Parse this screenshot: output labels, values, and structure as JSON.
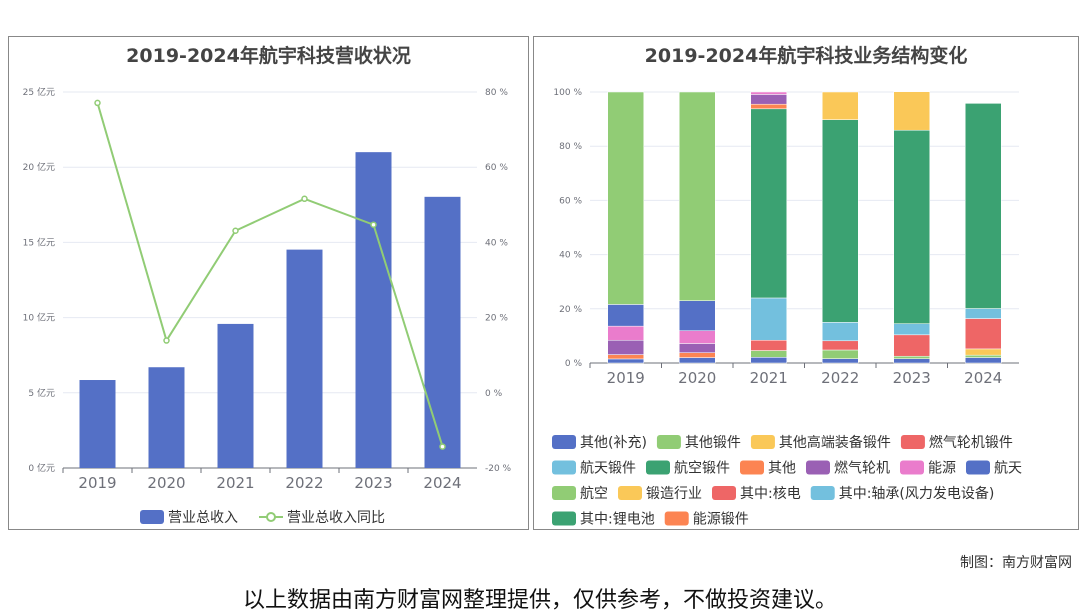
{
  "chart_data": [
    {
      "type": "bar+line",
      "title": "2019-2024年航宇科技营收状况",
      "categories": [
        "2019",
        "2020",
        "2021",
        "2022",
        "2023",
        "2024"
      ],
      "series": [
        {
          "name": "营业总收入",
          "type": "bar",
          "unit": "亿元",
          "color": "#5470c6",
          "values": [
            5.85,
            6.7,
            9.58,
            14.52,
            21.0,
            18.03
          ]
        },
        {
          "name": "营业总收入同比",
          "type": "line",
          "unit": "%",
          "color": "#91cc75",
          "values": [
            77.1,
            13.9,
            43.1,
            51.6,
            44.7,
            -14.3
          ]
        }
      ],
      "y_left": {
        "ticks": [
          "0 亿元",
          "5 亿元",
          "10 亿元",
          "15 亿元",
          "20 亿元",
          "25 亿元"
        ],
        "range": [
          0,
          25
        ]
      },
      "y_right": {
        "ticks": [
          "-20 %",
          "0 %",
          "20 %",
          "40 %",
          "60 %",
          "80 %"
        ],
        "range": [
          -20,
          80
        ]
      },
      "legend_position": "bottom-center",
      "grid": true
    },
    {
      "type": "stacked-bar",
      "title": "2019-2024年航宇科技业务结构变化",
      "categories": [
        "2019",
        "2020",
        "2021",
        "2022",
        "2023",
        "2024"
      ],
      "y_ticks": [
        "0 %",
        "20 %",
        "40 %",
        "60 %",
        "80 %",
        "100 %"
      ],
      "y_range": [
        0,
        100
      ],
      "legend": [
        {
          "name": "其他(补充)",
          "color": "#5470c6"
        },
        {
          "name": "其他锻件",
          "color": "#91cc75"
        },
        {
          "name": "其他高端装备锻件",
          "color": "#fac858"
        },
        {
          "name": "燃气轮机锻件",
          "color": "#ee6666"
        },
        {
          "name": "航天锻件",
          "color": "#73c0de"
        },
        {
          "name": "航空锻件",
          "color": "#3ba272"
        },
        {
          "name": "其他",
          "color": "#fc8452"
        },
        {
          "name": "燃气轮机",
          "color": "#9a60b4"
        },
        {
          "name": "能源",
          "color": "#ea7ccc"
        },
        {
          "name": "航天",
          "color": "#5470c6"
        },
        {
          "name": "航空",
          "color": "#91cc75"
        },
        {
          "name": "锻造行业",
          "color": "#fac858"
        },
        {
          "name": "其中:核电",
          "color": "#ee6666"
        },
        {
          "name": "其中:轴承(风力发电设备)",
          "color": "#73c0de"
        },
        {
          "name": "其中:锂电池",
          "color": "#3ba272"
        },
        {
          "name": "能源锻件",
          "color": "#fc8452"
        }
      ],
      "stacks": [
        [
          {
            "s": "其他(补充)",
            "v": 1.5
          },
          {
            "s": "其他",
            "v": 1.6
          },
          {
            "s": "燃气轮机",
            "v": 5.3
          },
          {
            "s": "能源",
            "v": 5.2
          },
          {
            "s": "航天",
            "v": 8.0
          },
          {
            "s": "航空",
            "v": 78.4
          }
        ],
        [
          {
            "s": "其他(补充)",
            "v": 2.0
          },
          {
            "s": "其他",
            "v": 1.8
          },
          {
            "s": "燃气轮机",
            "v": 3.4
          },
          {
            "s": "能源",
            "v": 4.7
          },
          {
            "s": "航天",
            "v": 11.1
          },
          {
            "s": "航空",
            "v": 77.0
          }
        ],
        [
          {
            "s": "其他(补充)",
            "v": 2.1
          },
          {
            "s": "其他锻件",
            "v": 2.5
          },
          {
            "s": "燃气轮机锻件",
            "v": 3.8
          },
          {
            "s": "航天锻件",
            "v": 15.6
          },
          {
            "s": "航空锻件",
            "v": 69.8
          },
          {
            "s": "能源锻件",
            "v": 1.7
          },
          {
            "s": "燃气轮机",
            "v": 3.6
          },
          {
            "s": "能源",
            "v": 0.9
          }
        ],
        [
          {
            "s": "其他(补充)",
            "v": 1.6
          },
          {
            "s": "其他锻件",
            "v": 3.2
          },
          {
            "s": "燃气轮机锻件",
            "v": 3.4
          },
          {
            "s": "航天锻件",
            "v": 6.8
          },
          {
            "s": "航空锻件",
            "v": 74.8
          },
          {
            "s": "其他高端装备锻件",
            "v": 10.2
          }
        ],
        [
          {
            "s": "其他(补充)",
            "v": 1.6
          },
          {
            "s": "其他锻件",
            "v": 0.9
          },
          {
            "s": "燃气轮机锻件",
            "v": 7.9
          },
          {
            "s": "航天锻件",
            "v": 4.1
          },
          {
            "s": "航空锻件",
            "v": 71.4
          },
          {
            "s": "其他高端装备锻件",
            "v": 14.2
          }
        ],
        [
          {
            "s": "其他(补充)",
            "v": 2.0
          },
          {
            "s": "其他锻件",
            "v": 0.9
          },
          {
            "s": "锻造行业",
            "v": 2.3
          },
          {
            "s": "其中:核电",
            "v": 11.2
          },
          {
            "s": "其中:轴承(风力发电设备)",
            "v": 3.7
          },
          {
            "s": "其中:锂电池",
            "v": 75.7
          }
        ]
      ],
      "legend_position": "bottom",
      "grid": true
    }
  ],
  "footer": {
    "credit": "制图：南方财富网",
    "disclaimer": "以上数据由南方财富网整理提供，仅供参考，不做投资建议。"
  }
}
